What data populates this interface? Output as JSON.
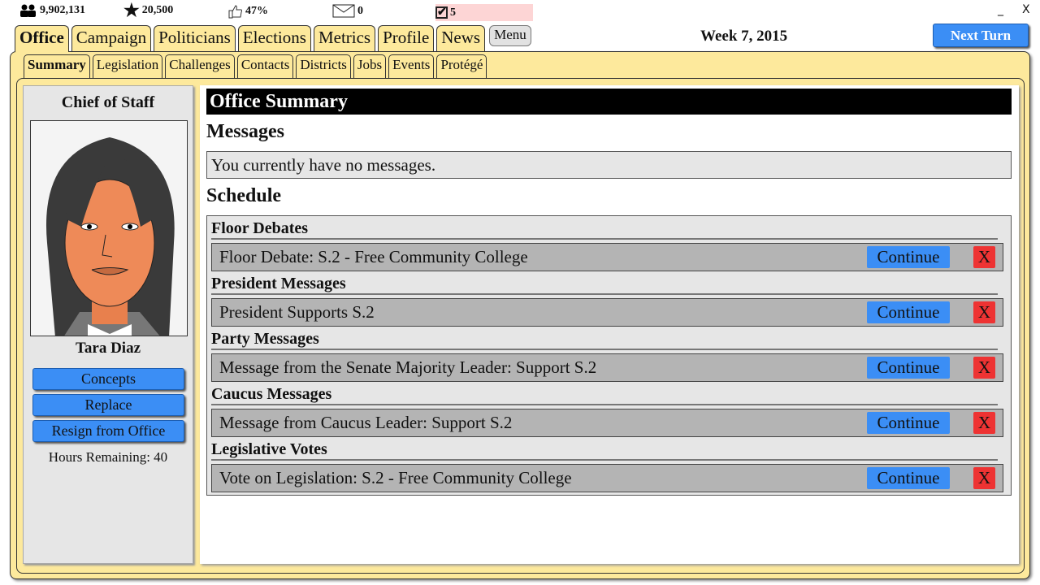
{
  "topbar": {
    "population": "9,902,131",
    "stars": "20,500",
    "approval": "47%",
    "mail": "0",
    "tasks": "5",
    "tasks_highlight": "#fdd5d5",
    "minimize": "_",
    "close": "X"
  },
  "nav": {
    "tabs": [
      "Office",
      "Campaign",
      "Politicians",
      "Elections",
      "Metrics",
      "Profile",
      "News"
    ],
    "active": "Office",
    "menu": "Menu"
  },
  "week": "Week 7, 2015",
  "next_turn": "Next Turn",
  "subtabs": [
    "Summary",
    "Legislation",
    "Challenges",
    "Contacts",
    "Districts",
    "Jobs",
    "Events",
    "Protégé"
  ],
  "sidebar": {
    "title": "Chief of Staff",
    "name": "Tara Diaz",
    "buttons": [
      "Concepts",
      "Replace",
      "Resign from Office"
    ],
    "hours": "Hours Remaining: 40"
  },
  "main": {
    "title": "Office Summary",
    "messages_heading": "Messages",
    "messages_text": "You currently have no messages.",
    "schedule_heading": "Schedule",
    "continue_label": "Continue",
    "dismiss_label": "X",
    "sections": [
      {
        "category": "Floor Debates",
        "item": "Floor Debate: S.2 - Free Community College"
      },
      {
        "category": "President Messages",
        "item": "President Supports S.2"
      },
      {
        "category": "Party Messages",
        "item": "Message from the Senate Majority Leader: Support S.2"
      },
      {
        "category": "Caucus Messages",
        "item": "Message from Caucus Leader: Support S.2"
      },
      {
        "category": "Legislative Votes",
        "item": "Vote on Legislation: S.2 - Free Community College"
      }
    ]
  },
  "colors": {
    "accent": "#3b8ef5",
    "panel": "#fde99c",
    "danger": "#ee3333"
  }
}
